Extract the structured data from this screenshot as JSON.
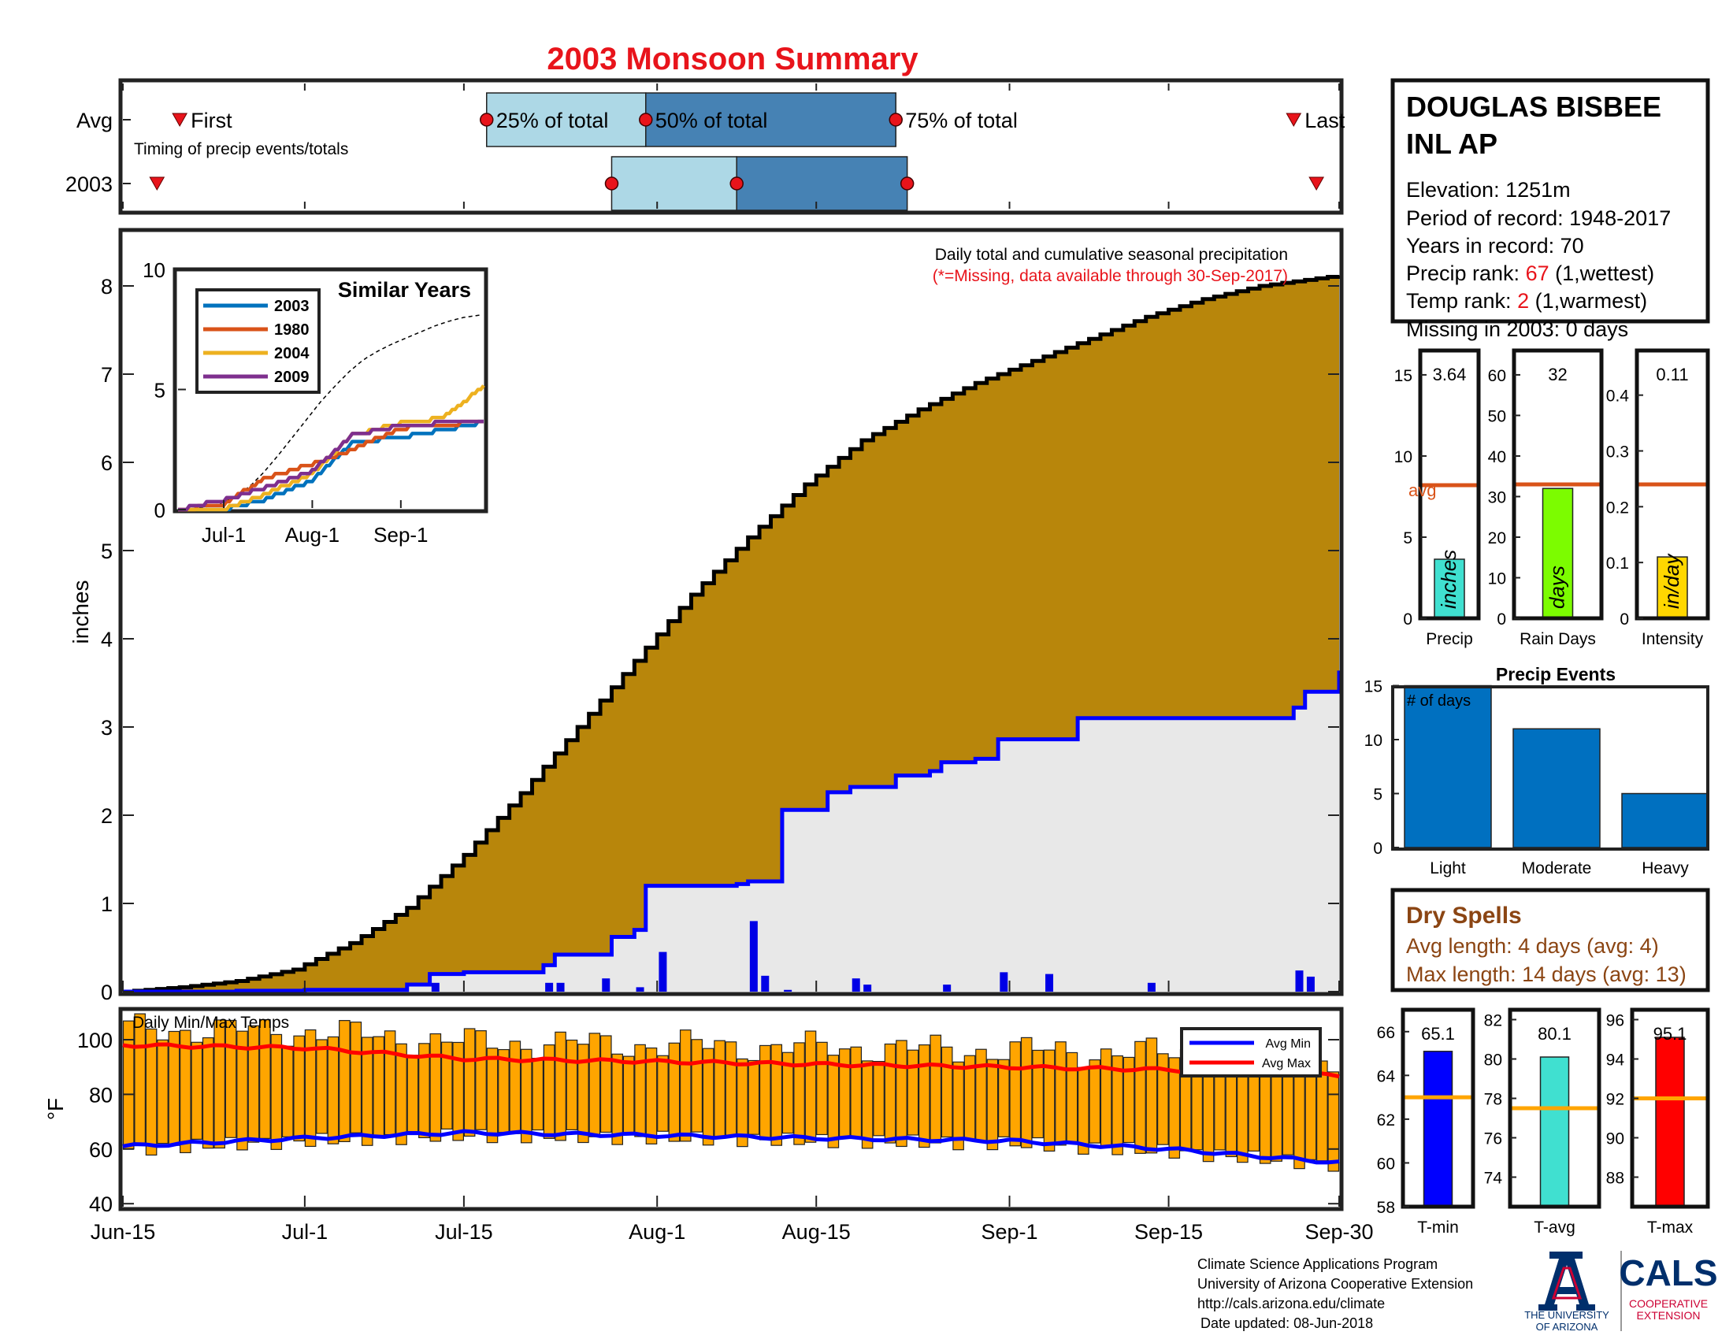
{
  "title": "2003 Monsoon Summary",
  "colors": {
    "title": "#e8141b",
    "red": "#e8141b",
    "brown": "#8b4513",
    "cum_avg": "#b8860b",
    "cum_year": "#0000ff",
    "bars": "#0000e6",
    "temp_bar": "#ffa500",
    "light_blue": "#add8e6",
    "steel_blue": "#4682b4",
    "events": "#0070c0",
    "turquoise": "#40e0d0",
    "green": "#7cfc00",
    "gold": "#ffd700",
    "orange_line": "#d95319"
  },
  "timing": {
    "row_labels": [
      "Avg",
      "2003"
    ],
    "avg": {
      "first": "Jun-20",
      "q25": "Jul-17",
      "q50": "Jul-31",
      "q75": "Aug-22",
      "last": "Sep-26"
    },
    "year": {
      "first": "Jun-18",
      "q25": "Jul-28",
      "q50": "Aug-8",
      "q75": "Aug-23",
      "last": "Sep-28"
    },
    "labels": {
      "first": "First",
      "q25": "25% of total",
      "q50": "50% of total",
      "q75": "75% of total",
      "last": "Last"
    },
    "caption": "Timing of precip events/totals"
  },
  "station": {
    "name_line1": "DOUGLAS BISBEE",
    "name_line2": "INL AP",
    "elevation": "Elevation: 1251m",
    "period": "Period of record: 1948-2017",
    "years": "Years in record: 70",
    "precip_rank_prefix": "Precip rank: ",
    "precip_rank": "67",
    "precip_rank_suffix": " (1,wettest)",
    "temp_rank_prefix": "Temp rank: ",
    "temp_rank": "2",
    "temp_rank_suffix": " (1,warmest)",
    "missing": "Missing in 2003: 0 days"
  },
  "main_chart": {
    "ylabel": "inches",
    "note1": "Daily total and cumulative seasonal precipitation",
    "note2": "(*=Missing, data available through 30-Sep-2017)",
    "yticks": [
      "0",
      "1",
      "2",
      "3",
      "4",
      "5",
      "6",
      "7",
      "8"
    ],
    "xticks": [
      "Jun-15",
      "Jul-1",
      "Jul-15",
      "Aug-1",
      "Aug-15",
      "Sep-1",
      "Sep-15",
      "Sep-30"
    ]
  },
  "inset": {
    "title": "Similar Years",
    "legend": [
      "2003",
      "1980",
      "2004",
      "2009"
    ],
    "yticks": [
      "0",
      "5",
      "10"
    ],
    "xticks": [
      "Jul-1",
      "Aug-1",
      "Sep-1"
    ]
  },
  "temps": {
    "label": "Daily Min/Max Temps",
    "ylabel": "°F",
    "yticks": [
      "40",
      "60",
      "80",
      "100"
    ],
    "legend": [
      "Avg Min",
      "Avg Max"
    ]
  },
  "small": {
    "precip": {
      "label": "Precip",
      "value": "3.64",
      "unit": "inches",
      "yticks": [
        "0",
        "5",
        "10",
        "15"
      ],
      "avg_label": "avg"
    },
    "raindays": {
      "label": "Rain Days",
      "value": "32",
      "unit": "days",
      "yticks": [
        "0",
        "10",
        "20",
        "30",
        "40",
        "50",
        "60"
      ]
    },
    "intensity": {
      "label": "Intensity",
      "value": "0.11",
      "unit": "in/day",
      "yticks": [
        "0",
        "0.1",
        "0.2",
        "0.3",
        "0.4"
      ]
    }
  },
  "events": {
    "title": "Precip Events",
    "ylabel": "# of days",
    "categories": [
      "Light",
      "Moderate",
      "Heavy"
    ],
    "yticks": [
      "0",
      "5",
      "10",
      "15"
    ]
  },
  "dry": {
    "title": "Dry Spells",
    "avg": "Avg length: 4 days (avg: 4)",
    "max": "Max length: 14 days (avg: 13)"
  },
  "temp_bars": {
    "tmin": {
      "label": "T-min",
      "value": "65.1",
      "yticks": [
        "58",
        "60",
        "62",
        "64",
        "66"
      ]
    },
    "tavg": {
      "label": "T-avg",
      "value": "80.1",
      "yticks": [
        "74",
        "76",
        "78",
        "80",
        "82"
      ]
    },
    "tmax": {
      "label": "T-max",
      "value": "95.1",
      "yticks": [
        "88",
        "90",
        "92",
        "94",
        "96"
      ]
    }
  },
  "footer": {
    "line1": "Climate Science Applications Program",
    "line2": "University of Arizona Cooperative Extension",
    "line3": "http://cals.arizona.edu/climate",
    "line4": "Date updated: 08-Jun-2018",
    "logo_ua_1": "THE UNIVERSITY",
    "logo_ua_2": "OF ARIZONA",
    "logo_cals": "CALS",
    "logo_coop_1": "COOPERATIVE",
    "logo_coop_2": "EXTENSION"
  },
  "chart_data": [
    {
      "type": "area",
      "title": "2003 Monsoon Summary",
      "xlabel": "",
      "ylabel": "inches",
      "xlim": [
        "Jun-15",
        "Sep-30"
      ],
      "ylim": [
        0,
        8.6
      ],
      "grid": false,
      "series": [
        {
          "x": [
            "Jun-15",
            "Jun-20",
            "Jun-25",
            "Jun-30",
            "Jul-5",
            "Jul-10",
            "Jul-15",
            "Jul-20",
            "Jul-25",
            "Jul-30",
            "Aug-4",
            "Aug-9",
            "Aug-14",
            "Aug-19",
            "Aug-24",
            "Aug-29",
            "Sep-3",
            "Sep-8",
            "Sep-13",
            "Sep-18",
            "Sep-23",
            "Sep-30"
          ],
          "values": [
            0.0,
            0.05,
            0.12,
            0.25,
            0.55,
            0.95,
            1.55,
            2.25,
            3.0,
            3.75,
            4.5,
            5.15,
            5.75,
            6.25,
            6.6,
            6.9,
            7.15,
            7.4,
            7.65,
            7.85,
            8.0,
            8.12
          ]
        },
        {
          "name": "2003",
          "x": [
            "Jun-15",
            "Jun-25",
            "Jul-1",
            "Jul-10",
            "Jul-12",
            "Jul-15",
            "Jul-22",
            "Jul-23",
            "Jul-28",
            "Jul-30",
            "Jul-31",
            "Aug-8",
            "Aug-9",
            "Aug-12",
            "Aug-16",
            "Aug-18",
            "Aug-22",
            "Aug-25",
            "Aug-26",
            "Aug-29",
            "Aug-31",
            "Sep-7",
            "Sep-26",
            "Sep-27",
            "Sep-30"
          ],
          "values": [
            0.0,
            0.01,
            0.02,
            0.08,
            0.2,
            0.22,
            0.3,
            0.42,
            0.62,
            0.7,
            1.2,
            1.22,
            1.25,
            2.06,
            2.26,
            2.32,
            2.45,
            2.5,
            2.6,
            2.64,
            2.86,
            3.1,
            3.22,
            3.4,
            3.64
          ]
        }
      ]
    },
    {
      "type": "bar",
      "title": "Daily precipitation",
      "ylabel": "inches",
      "x": [
        "Jul-12",
        "Jul-22",
        "Jul-23",
        "Jul-27",
        "Jul-30",
        "Aug-1",
        "Aug-9",
        "Aug-10",
        "Aug-12",
        "Aug-18",
        "Aug-19",
        "Aug-26",
        "Aug-31",
        "Sep-4",
        "Sep-13",
        "Sep-26",
        "Sep-27"
      ],
      "values": [
        0.1,
        0.1,
        0.1,
        0.15,
        0.05,
        0.45,
        0.8,
        0.18,
        0.02,
        0.15,
        0.08,
        0.08,
        0.22,
        0.2,
        0.1,
        0.24,
        0.17
      ]
    },
    {
      "type": "line",
      "title": "Similar Years",
      "ylim": [
        0,
        10
      ],
      "series": [
        {
          "name": "2003",
          "x": [
            "Jun-15",
            "Jul-1",
            "Jul-15",
            "Aug-1",
            "Aug-15",
            "Sep-1",
            "Sep-15",
            "Sep-30"
          ],
          "values": [
            0,
            0,
            0.4,
            1.2,
            2.8,
            3.0,
            3.3,
            3.64
          ]
        },
        {
          "name": "1980",
          "x": [
            "Jun-15",
            "Jul-1",
            "Jul-15",
            "Aug-1",
            "Aug-15",
            "Sep-1",
            "Sep-15",
            "Sep-30"
          ],
          "values": [
            0,
            0.2,
            1.3,
            1.9,
            2.5,
            3.4,
            3.5,
            3.7
          ]
        },
        {
          "name": "2004",
          "x": [
            "Jun-15",
            "Jul-1",
            "Jul-15",
            "Aug-1",
            "Aug-15",
            "Sep-1",
            "Sep-15",
            "Sep-30"
          ],
          "values": [
            0,
            0,
            0.6,
            1.5,
            3.1,
            3.6,
            3.8,
            5.1
          ]
        },
        {
          "name": "2009",
          "x": [
            "Jun-15",
            "Jul-1",
            "Jul-15",
            "Aug-1",
            "Aug-15",
            "Sep-1",
            "Sep-15",
            "Sep-30"
          ],
          "values": [
            0,
            0.4,
            0.9,
            1.6,
            3.1,
            3.5,
            3.6,
            3.7
          ]
        }
      ]
    },
    {
      "type": "bar",
      "title": "Daily Min/Max Temps",
      "ylabel": "°F",
      "ylim": [
        37,
        110
      ],
      "series": [
        {
          "name": "Avg Min",
          "x": [
            "Jun-15",
            "Jul-1",
            "Jul-15",
            "Aug-1",
            "Aug-15",
            "Sep-1",
            "Sep-15",
            "Sep-30"
          ],
          "values": [
            61,
            64,
            66,
            65,
            64,
            63,
            60,
            55
          ]
        },
        {
          "name": "Avg Max",
          "x": [
            "Jun-15",
            "Jul-1",
            "Jul-15",
            "Aug-1",
            "Aug-15",
            "Sep-1",
            "Sep-15",
            "Sep-30"
          ],
          "values": [
            98,
            97,
            93,
            92,
            91,
            90,
            89,
            87
          ]
        }
      ]
    },
    {
      "type": "bar",
      "categories": [
        "Precip"
      ],
      "values": [
        3.64
      ],
      "avg": 8.2,
      "ylim": [
        0,
        16.5
      ]
    },
    {
      "type": "bar",
      "categories": [
        "Rain Days"
      ],
      "values": [
        32
      ],
      "avg": 33,
      "ylim": [
        0,
        66
      ]
    },
    {
      "type": "bar",
      "categories": [
        "Intensity"
      ],
      "values": [
        0.11
      ],
      "avg": 0.24,
      "ylim": [
        0,
        0.48
      ]
    },
    {
      "type": "bar",
      "title": "Precip Events",
      "categories": [
        "Light",
        "Moderate",
        "Heavy"
      ],
      "values": [
        15,
        11,
        5
      ],
      "ylim": [
        0,
        15
      ]
    },
    {
      "type": "bar",
      "categories": [
        "T-min"
      ],
      "values": [
        65.1
      ],
      "avg": 63,
      "ylim": [
        58,
        67
      ]
    },
    {
      "type": "bar",
      "categories": [
        "T-avg"
      ],
      "values": [
        80.1
      ],
      "avg": 77.5,
      "ylim": [
        72.5,
        82.5
      ]
    },
    {
      "type": "bar",
      "categories": [
        "T-max"
      ],
      "values": [
        95.1
      ],
      "avg": 92,
      "ylim": [
        86.5,
        96.5
      ]
    }
  ]
}
